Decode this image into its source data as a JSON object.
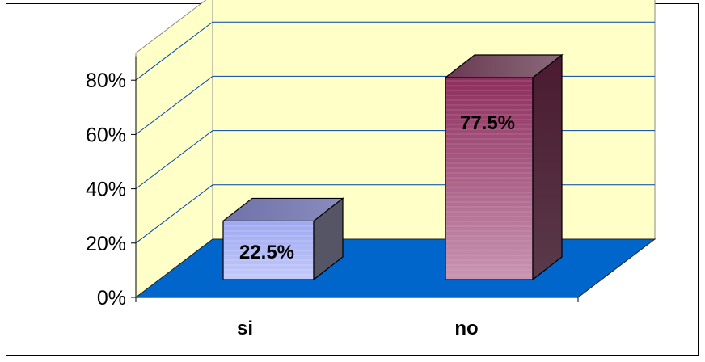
{
  "chart_data": {
    "type": "bar",
    "style": "3d-column",
    "categories": [
      "si",
      "no"
    ],
    "values": [
      22.5,
      77.5
    ],
    "data_labels": [
      "22.5%",
      "77.5%"
    ],
    "y_ticks": [
      "0%",
      "20%",
      "40%",
      "60%",
      "80%"
    ],
    "ylim": [
      0,
      90
    ],
    "title": "",
    "xlabel": "",
    "ylabel": "",
    "grid": true,
    "legend": "none",
    "colors": {
      "back_wall": "#ffffc8",
      "floor": "#0066cc",
      "gridline": "#0044aa",
      "bar_si": "#aab4f5",
      "bar_no": "#a8507e"
    }
  }
}
